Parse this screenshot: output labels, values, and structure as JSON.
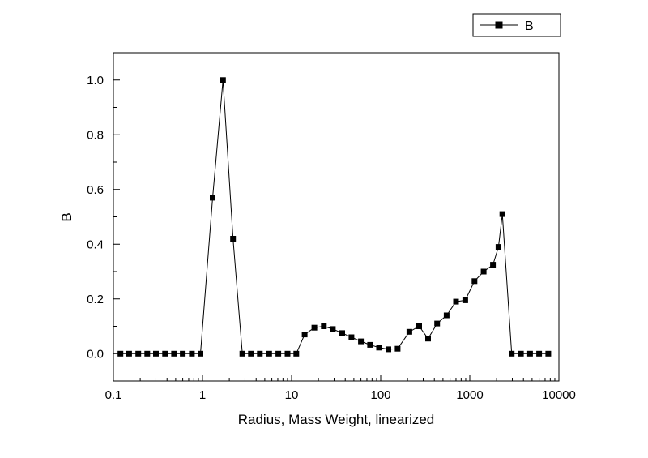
{
  "chart_data": {
    "type": "line",
    "title": "",
    "xlabel": "Radius, Mass Weight, linearized",
    "ylabel": "B",
    "x_scale": "log",
    "y_scale": "linear",
    "grid": false,
    "background": "#ffffff",
    "frame_color": "#000000",
    "xlim": [
      0.1,
      10000
    ],
    "ylim": [
      -0.1,
      1.1
    ],
    "xticks": [
      0.1,
      1,
      10,
      100,
      1000,
      10000
    ],
    "xtick_labels": [
      "0.1",
      "1",
      "10",
      "100",
      "1000",
      "10000"
    ],
    "yticks": [
      0,
      0.2,
      0.4,
      0.6,
      0.8,
      1
    ],
    "ytick_labels": [
      "0.0",
      "0.2",
      "0.4",
      "0.6",
      "0.8",
      "1.0"
    ],
    "legend": {
      "position": "top-right",
      "entries": [
        "B"
      ]
    },
    "series": [
      {
        "name": "B",
        "color": "#000000",
        "marker": "filled-square",
        "line_width": 1,
        "points": [
          [
            0.12,
            0.0
          ],
          [
            0.15,
            0.0
          ],
          [
            0.19,
            0.0
          ],
          [
            0.24,
            0.0
          ],
          [
            0.3,
            0.0
          ],
          [
            0.38,
            0.0
          ],
          [
            0.48,
            0.0
          ],
          [
            0.6,
            0.0
          ],
          [
            0.76,
            0.0
          ],
          [
            0.95,
            0.0
          ],
          [
            1.3,
            0.57
          ],
          [
            1.7,
            1.0
          ],
          [
            2.2,
            0.42
          ],
          [
            2.8,
            0.0
          ],
          [
            3.5,
            0.0
          ],
          [
            4.4,
            0.0
          ],
          [
            5.6,
            0.0
          ],
          [
            7.1,
            0.0
          ],
          [
            9.0,
            0.0
          ],
          [
            11.3,
            0.0
          ],
          [
            14,
            0.07
          ],
          [
            18,
            0.095
          ],
          [
            23,
            0.1
          ],
          [
            29,
            0.09
          ],
          [
            37,
            0.075
          ],
          [
            47,
            0.06
          ],
          [
            60,
            0.045
          ],
          [
            76,
            0.032
          ],
          [
            96,
            0.022
          ],
          [
            122,
            0.016
          ],
          [
            155,
            0.018
          ],
          [
            210,
            0.08
          ],
          [
            270,
            0.1
          ],
          [
            340,
            0.055
          ],
          [
            430,
            0.11
          ],
          [
            550,
            0.14
          ],
          [
            700,
            0.19
          ],
          [
            890,
            0.195
          ],
          [
            1130,
            0.265
          ],
          [
            1430,
            0.3
          ],
          [
            1820,
            0.325
          ],
          [
            2100,
            0.39
          ],
          [
            2320,
            0.51
          ],
          [
            2950,
            0.0
          ],
          [
            3750,
            0.0
          ],
          [
            4750,
            0.0
          ],
          [
            6000,
            0.0
          ],
          [
            7600,
            0.0
          ]
        ]
      }
    ]
  }
}
